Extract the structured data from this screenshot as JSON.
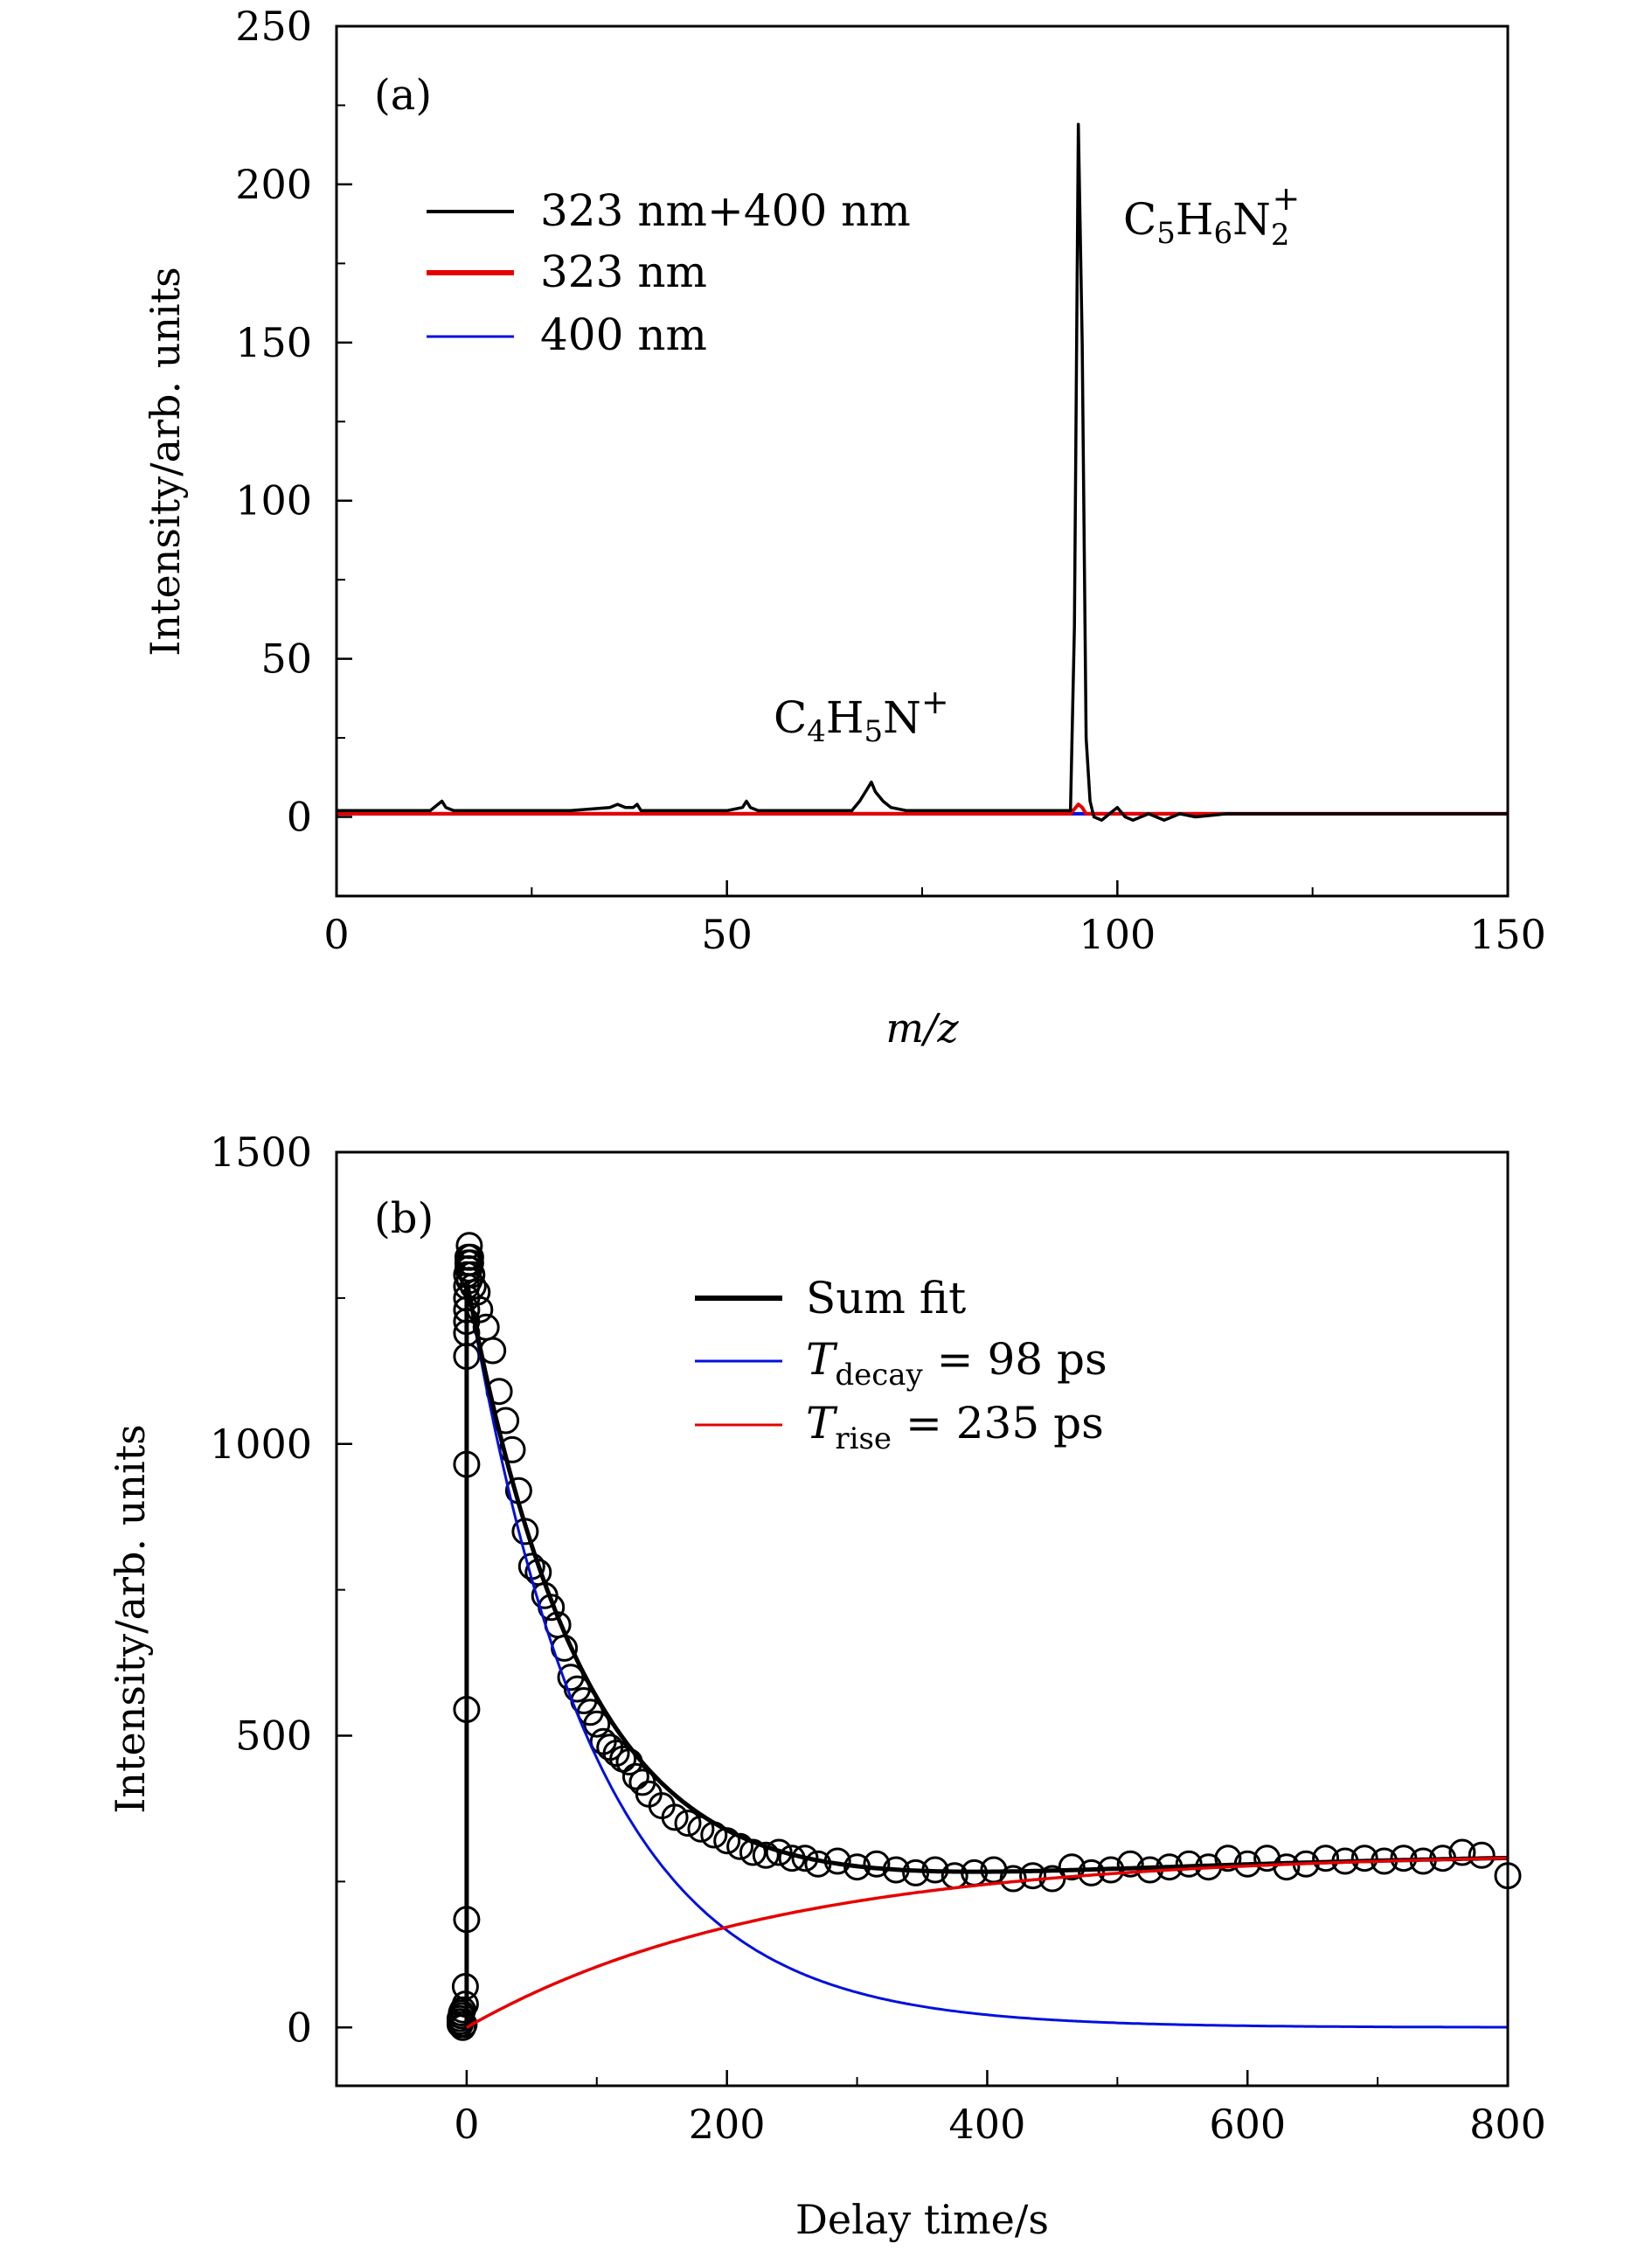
{
  "colors": {
    "black": "#000000",
    "red": "#e60000",
    "blue": "#0010dd"
  },
  "chart_data": [
    {
      "panel": "(a)",
      "type": "line",
      "xlabel": "m/z",
      "ylabel": "Intensity/arb. units",
      "xlim": [
        0,
        150
      ],
      "ylim": [
        -25,
        250
      ],
      "xticks": [
        0,
        50,
        100,
        150
      ],
      "yticks": [
        0,
        50,
        100,
        150,
        200,
        250
      ],
      "legend_position": "upper-left",
      "annotations": [
        {
          "base": "C",
          "sub1": "5",
          "mid1": "H",
          "sub2": "6",
          "mid2": "N",
          "sub3": "2",
          "sup": "+",
          "x": 100,
          "y": 190
        },
        {
          "base": "C",
          "sub1": "4",
          "mid1": "H",
          "sub2": "5",
          "mid2": "N",
          "sup": "+",
          "x": 68,
          "y": 28
        }
      ],
      "series": [
        {
          "name": "323 nm+400 nm",
          "color": "#000000",
          "x": [
            0,
            12,
            13,
            13.5,
            14,
            15,
            30,
            35,
            36,
            37,
            38,
            38.5,
            39,
            50,
            52,
            52.5,
            53,
            54,
            66,
            67,
            68,
            68.5,
            69,
            70,
            71,
            73,
            76,
            94,
            94.5,
            95,
            95.5,
            96,
            96.5,
            97,
            98,
            99,
            100,
            101,
            102,
            104,
            106,
            108,
            110,
            114,
            120,
            130,
            140,
            150
          ],
          "y": [
            2,
            2,
            4,
            5,
            3,
            2,
            2,
            3,
            4,
            3,
            3,
            4,
            2,
            2,
            3,
            5,
            3,
            2,
            2,
            5,
            9,
            11,
            8,
            5,
            3,
            2,
            2,
            2,
            60,
            219,
            150,
            25,
            5,
            0,
            -1,
            1,
            3,
            0,
            -1,
            1,
            -1,
            1,
            0,
            1,
            1,
            1,
            1,
            1
          ]
        },
        {
          "name": "323 nm",
          "color": "#e60000",
          "x": [
            0,
            94,
            95,
            95.5,
            96,
            97,
            150
          ],
          "y": [
            1,
            1,
            4,
            3,
            1,
            1,
            1
          ]
        },
        {
          "name": "400 nm",
          "color": "#0010dd",
          "x": [
            0,
            150
          ],
          "y": [
            1,
            1
          ]
        }
      ]
    },
    {
      "panel": "(b)",
      "type": "scatter",
      "xlabel": "Delay time/s",
      "ylabel": "Intensity/arb. units",
      "xlim": [
        -100,
        800
      ],
      "ylim": [
        -100,
        1500
      ],
      "xticks": [
        0,
        200,
        400,
        600,
        800
      ],
      "yticks": [
        0,
        500,
        1000,
        1500
      ],
      "legend_position": "upper-right",
      "legend": [
        {
          "name": "Sum fit",
          "color": "#000000"
        },
        {
          "name_base": "T",
          "name_sub": "decay",
          "name_rest": " = 98 ps",
          "color": "#0010dd"
        },
        {
          "name_base": "T",
          "name_sub": "rise",
          "name_rest": " = 235 ps",
          "color": "#e60000"
        }
      ],
      "fit": {
        "decay_ps": 98,
        "rise_ps": 235,
        "amp_decay": 1280,
        "amp_rise": 300,
        "x_start": 0,
        "x_end": 800
      },
      "points": {
        "x": [
          -5,
          -5,
          -5,
          -4,
          -4,
          -3,
          -3,
          -2,
          -1,
          -1,
          0,
          0,
          0,
          0,
          0,
          0,
          0,
          0,
          0,
          0,
          1,
          1,
          1,
          2,
          2,
          2,
          3,
          3,
          4,
          5,
          8,
          10,
          15,
          20,
          25,
          30,
          35,
          40,
          45,
          50,
          55,
          60,
          65,
          70,
          75,
          80,
          85,
          90,
          95,
          100,
          105,
          110,
          115,
          120,
          125,
          130,
          135,
          140,
          150,
          160,
          170,
          180,
          190,
          200,
          210,
          220,
          230,
          240,
          250,
          260,
          270,
          285,
          300,
          315,
          330,
          345,
          360,
          375,
          390,
          405,
          420,
          435,
          450,
          465,
          480,
          495,
          510,
          525,
          540,
          555,
          570,
          585,
          600,
          615,
          630,
          645,
          660,
          675,
          690,
          705,
          720,
          735,
          750,
          765,
          780,
          800
        ],
        "y": [
          5,
          10,
          15,
          20,
          25,
          0,
          30,
          5,
          40,
          70,
          185,
          545,
          965,
          1150,
          1190,
          1210,
          1230,
          1250,
          1270,
          1290,
          1300,
          1310,
          1320,
          1280,
          1300,
          1340,
          1320,
          1310,
          1290,
          1270,
          1260,
          1230,
          1200,
          1160,
          1090,
          1040,
          990,
          920,
          850,
          790,
          780,
          740,
          720,
          690,
          650,
          600,
          580,
          560,
          540,
          520,
          490,
          480,
          470,
          460,
          455,
          430,
          420,
          400,
          380,
          360,
          350,
          340,
          330,
          320,
          310,
          300,
          295,
          300,
          290,
          290,
          280,
          285,
          275,
          280,
          270,
          265,
          270,
          260,
          265,
          270,
          255,
          260,
          255,
          275,
          265,
          270,
          280,
          270,
          275,
          280,
          275,
          290,
          280,
          290,
          275,
          280,
          290,
          285,
          290,
          285,
          290,
          285,
          290,
          300,
          295,
          260
        ]
      }
    }
  ]
}
